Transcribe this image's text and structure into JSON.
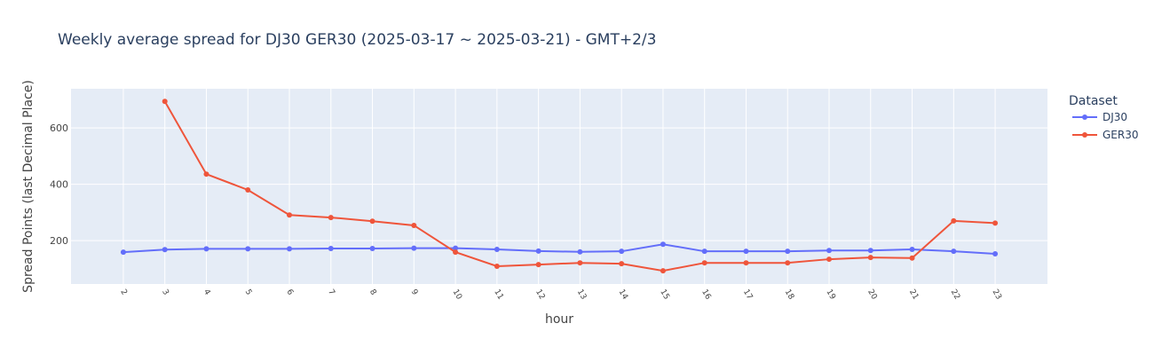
{
  "chart_data": {
    "type": "line",
    "title": "Weekly average spread for  DJ30 GER30 (2025-03-17 ~ 2025-03-21) - GMT+2/3",
    "x_label": "hour",
    "y_label": "Spread Points (last Decimal Place)",
    "legend_title": "Dataset",
    "x": [
      2,
      3,
      4,
      5,
      6,
      7,
      8,
      9,
      10,
      11,
      12,
      13,
      14,
      15,
      16,
      17,
      18,
      19,
      20,
      21,
      22,
      23
    ],
    "series": [
      {
        "name": "DJ30",
        "color": "#636efa",
        "values": [
          159,
          168,
          171,
          171,
          171,
          172,
          172,
          173,
          173,
          169,
          163,
          160,
          162,
          187,
          162,
          162,
          162,
          165,
          165,
          169,
          162,
          153
        ]
      },
      {
        "name": "GER30",
        "color": "#ef553b",
        "values": [
          null,
          694,
          436,
          380,
          291,
          282,
          269,
          254,
          159,
          109,
          115,
          121,
          118,
          93,
          121,
          121,
          121,
          134,
          140,
          138,
          270,
          262
        ]
      }
    ],
    "xlim": [
      0.74,
      24.26
    ],
    "ylim": [
      46,
      739
    ],
    "xticks": [
      2,
      3,
      4,
      5,
      6,
      7,
      8,
      9,
      10,
      11,
      12,
      13,
      14,
      15,
      16,
      17,
      18,
      19,
      20,
      21,
      22,
      23
    ],
    "yticks": [
      200,
      400,
      600
    ],
    "grid": true
  }
}
